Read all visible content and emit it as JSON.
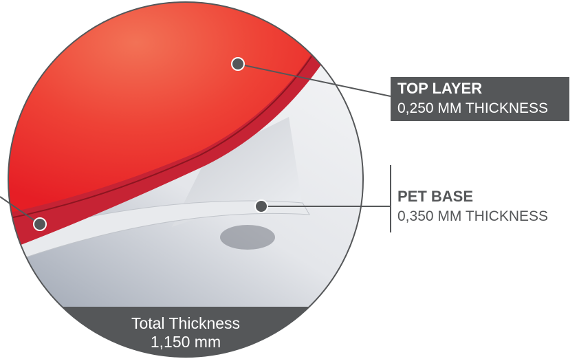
{
  "callouts": [
    {
      "title": "TOP LAYER",
      "detail": "0,250 MM THICKNESS"
    },
    {
      "title": "PET BASE",
      "detail": "0,350 MM THICKNESS"
    }
  ],
  "footer": {
    "title": "Total Thickness",
    "value": "1,150 mm"
  }
}
